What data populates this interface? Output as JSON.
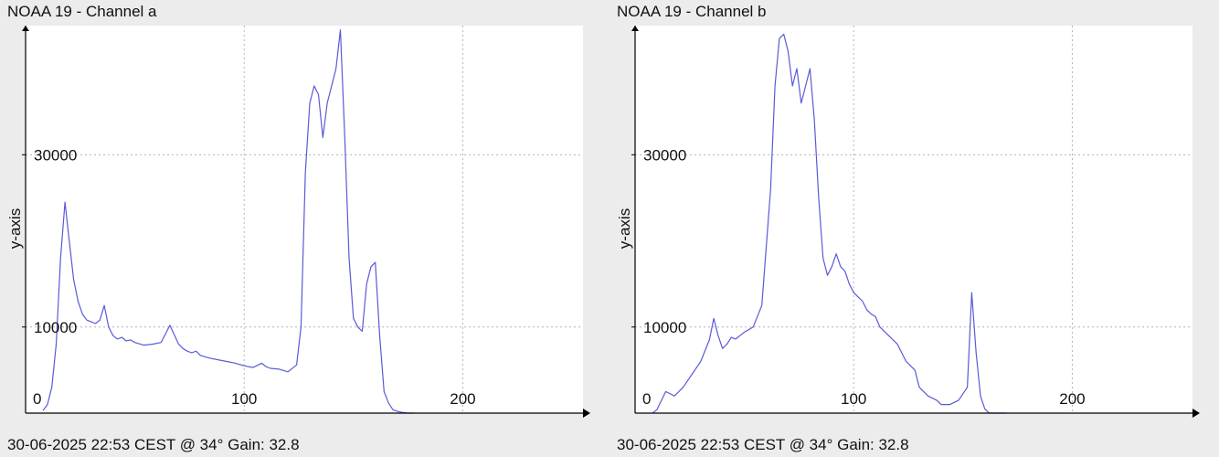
{
  "panels": [
    {
      "title": "NOAA 19 - Channel a",
      "footer": "30-06-2025 22:53 CEST @ 34° Gain: 32.8"
    },
    {
      "title": "NOAA 19 - Channel b",
      "footer": "30-06-2025 22:53 CEST @ 34° Gain: 32.8"
    }
  ],
  "chart_data": [
    {
      "type": "line",
      "title": "NOAA 19 - Channel a",
      "ylabel": "y-axis",
      "xlabel": "",
      "xlim": [
        0,
        255
      ],
      "ylim": [
        0,
        45000
      ],
      "x_ticks": [
        "0",
        "100",
        "200"
      ],
      "y_ticks": [
        "10000",
        "30000"
      ],
      "grid": true,
      "line_color": "#5a5ad8",
      "x": [
        8,
        10,
        12,
        14,
        16,
        18,
        20,
        22,
        24,
        26,
        28,
        30,
        32,
        34,
        36,
        38,
        40,
        42,
        44,
        46,
        48,
        50,
        54,
        58,
        62,
        66,
        70,
        72,
        74,
        76,
        78,
        80,
        84,
        88,
        92,
        96,
        100,
        104,
        108,
        110,
        112,
        116,
        120,
        124,
        126,
        128,
        130,
        132,
        134,
        136,
        138,
        140,
        142,
        144,
        146,
        148,
        150,
        152,
        154,
        156,
        158,
        160,
        162,
        164,
        166,
        168,
        170,
        172,
        175,
        178
      ],
      "y": [
        300,
        1000,
        3000,
        8000,
        18000,
        24500,
        20000,
        15500,
        13000,
        11500,
        10800,
        10600,
        10400,
        10800,
        12500,
        10000,
        9000,
        8600,
        8800,
        8400,
        8500,
        8200,
        7900,
        8000,
        8200,
        10200,
        8000,
        7500,
        7200,
        7000,
        7200,
        6700,
        6400,
        6200,
        6000,
        5800,
        5500,
        5300,
        5800,
        5400,
        5200,
        5100,
        4800,
        5600,
        10000,
        28000,
        36000,
        38000,
        37000,
        32000,
        36000,
        38000,
        40000,
        44500,
        32000,
        18000,
        11000,
        10000,
        9500,
        15000,
        17000,
        17500,
        9000,
        2500,
        1200,
        400,
        200,
        100,
        0,
        0
      ]
    },
    {
      "type": "line",
      "title": "NOAA 19 - Channel b",
      "ylabel": "y-axis",
      "xlabel": "",
      "xlim": [
        0,
        255
      ],
      "ylim": [
        0,
        45000
      ],
      "x_ticks": [
        "0",
        "100",
        "200"
      ],
      "y_ticks": [
        "10000",
        "30000"
      ],
      "grid": true,
      "line_color": "#5a5ad8",
      "x": [
        8,
        10,
        14,
        18,
        22,
        26,
        30,
        34,
        36,
        38,
        40,
        42,
        44,
        46,
        48,
        50,
        54,
        58,
        62,
        64,
        66,
        68,
        70,
        72,
        74,
        76,
        78,
        80,
        82,
        84,
        86,
        88,
        90,
        92,
        94,
        96,
        98,
        100,
        102,
        104,
        106,
        108,
        110,
        112,
        116,
        120,
        124,
        128,
        130,
        134,
        138,
        140,
        144,
        148,
        152,
        154,
        156,
        158,
        160,
        162,
        166,
        170
      ],
      "y": [
        0,
        400,
        2500,
        2000,
        3000,
        4500,
        6000,
        8500,
        11000,
        9000,
        7500,
        8000,
        8800,
        8600,
        9000,
        9400,
        10000,
        12500,
        26000,
        38000,
        43500,
        44000,
        42000,
        38000,
        40000,
        36000,
        38000,
        40000,
        34000,
        25000,
        18000,
        16000,
        17000,
        18500,
        17000,
        16500,
        15000,
        14000,
        13500,
        13000,
        12000,
        11500,
        11200,
        10000,
        9000,
        8000,
        6000,
        5000,
        3000,
        2000,
        1500,
        1000,
        1000,
        1500,
        3000,
        14000,
        7000,
        2000,
        500,
        0,
        0,
        0
      ]
    }
  ]
}
